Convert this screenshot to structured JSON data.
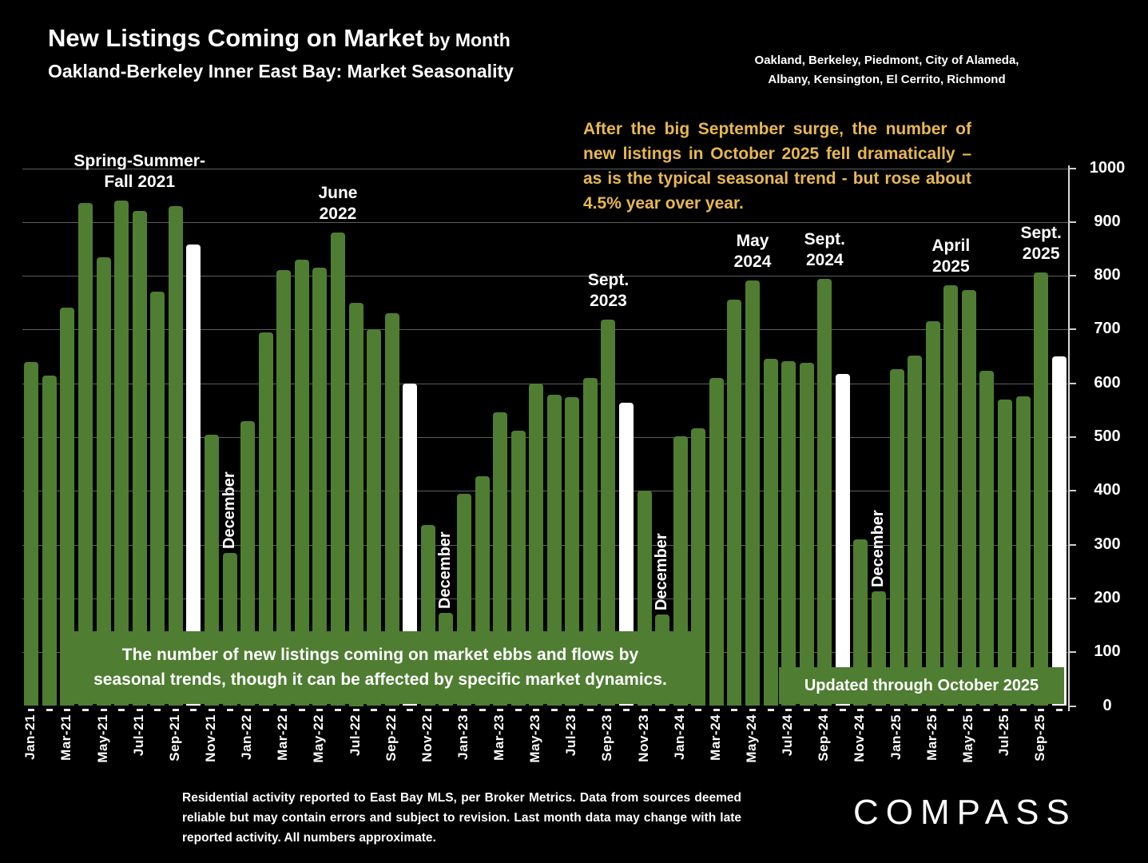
{
  "title": {
    "main": "New Listings Coming on Market",
    "suffix": " by Month",
    "subtitle": "Oakland-Berkeley Inner East Bay: Market Seasonality"
  },
  "region_note": {
    "line1": "Oakland, Berkeley, Piedmont, City of Alameda,",
    "line2": "Albany, Kensington, El Cerrito, Richmond"
  },
  "highlight_note": "After the big September surge, the number of new listings in October 2025 fell dramatically – as is the typical seasonal trend - but rose about 4.5% year over year.",
  "chart_data": {
    "type": "bar",
    "title": "New Listings Coming on Market by Month",
    "xlabel": "",
    "ylabel": "",
    "ylim": [
      0,
      1000
    ],
    "ytick_interval": 100,
    "grid": true,
    "legend_position": "none",
    "categories": [
      "Jan-21",
      "Feb-21",
      "Mar-21",
      "Apr-21",
      "May-21",
      "Jun-21",
      "Jul-21",
      "Aug-21",
      "Sep-21",
      "Oct-21",
      "Nov-21",
      "Dec-21",
      "Jan-22",
      "Feb-22",
      "Mar-22",
      "Apr-22",
      "May-22",
      "Jun-22",
      "Jul-22",
      "Aug-22",
      "Sep-22",
      "Oct-22",
      "Nov-22",
      "Dec-22",
      "Jan-23",
      "Feb-23",
      "Mar-23",
      "Apr-23",
      "May-23",
      "Jun-23",
      "Jul-23",
      "Aug-23",
      "Sep-23",
      "Oct-23",
      "Nov-23",
      "Dec-23",
      "Jan-24",
      "Feb-24",
      "Mar-24",
      "Apr-24",
      "May-24",
      "Jun-24",
      "Jul-24",
      "Aug-24",
      "Sep-24",
      "Oct-24",
      "Nov-24",
      "Dec-24",
      "Jan-25",
      "Feb-25",
      "Mar-25",
      "Apr-25",
      "May-25",
      "Jun-25",
      "Jul-25",
      "Aug-25",
      "Sep-25",
      "Oct-25"
    ],
    "values": [
      640,
      615,
      740,
      935,
      835,
      940,
      920,
      770,
      930,
      858,
      505,
      285,
      530,
      695,
      810,
      830,
      815,
      880,
      750,
      700,
      730,
      600,
      337,
      173,
      395,
      427,
      546,
      512,
      600,
      579,
      574,
      610,
      718,
      564,
      400,
      170,
      502,
      517,
      610,
      756,
      791,
      645,
      641,
      638,
      794,
      618,
      310,
      213,
      627,
      652,
      715,
      782,
      773,
      624,
      570,
      576,
      806,
      650
    ],
    "white_bar_indices": [
      9,
      21,
      33,
      45,
      57
    ],
    "xtick_label_every": 2,
    "december_label_text": "December",
    "december_label_indices": [
      11,
      23,
      35,
      47
    ],
    "annotations": [
      {
        "id": "spring-summer-fall-2021",
        "lines": [
          "Spring-Summer-",
          "Fall  2021"
        ],
        "month_index": 6
      },
      {
        "id": "june-2022",
        "lines": [
          "June",
          "2022"
        ],
        "month_index": 17
      },
      {
        "id": "sept-2023",
        "lines": [
          "Sept.",
          "2023"
        ],
        "month_index": 32
      },
      {
        "id": "may-2024",
        "lines": [
          "May",
          "2024"
        ],
        "month_index": 40
      },
      {
        "id": "sept-2024",
        "lines": [
          "Sept.",
          "2024"
        ],
        "month_index": 44
      },
      {
        "id": "april-2025",
        "lines": [
          "April",
          "2025"
        ],
        "month_index": 51
      },
      {
        "id": "sept-2025",
        "lines": [
          "Sept.",
          "2025"
        ],
        "month_index": 56
      }
    ]
  },
  "seasonality_note": {
    "line1": "The number of new listings coming on market ebbs and flows by",
    "line2": "seasonal trends, though it can be affected by specific market dynamics."
  },
  "updated_note": "Updated through October 2025",
  "footer_note": "Residential activity reported to East Bay MLS, per Broker Metrics. Data from sources deemed reliable but may contain errors and subject to revision. Last month data may change with late reported activity. All numbers approximate.",
  "logo_text": "COMPASS",
  "colors": {
    "background": "#000000",
    "bar_green": "#4f7d32",
    "bar_white": "#ffffff",
    "highlight_text": "#e8b84d",
    "gridline": "#5d5d5d",
    "text": "#ffffff"
  }
}
